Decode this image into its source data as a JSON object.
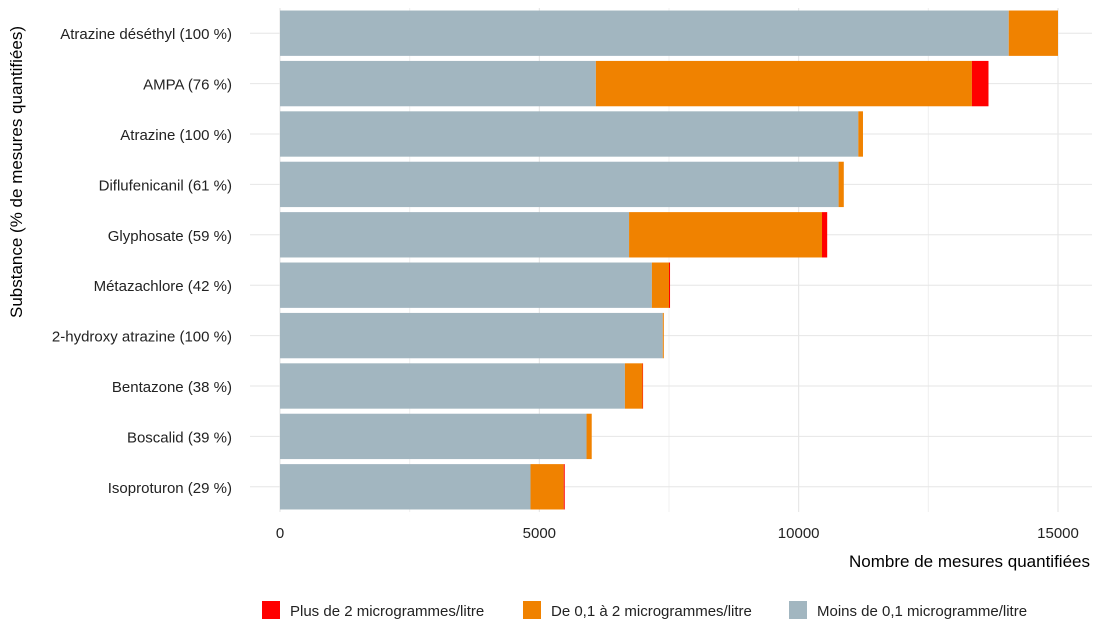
{
  "chart_data": {
    "type": "bar",
    "orientation": "horizontal",
    "stacked": true,
    "ylabel": "Substance (% de mesures quantifiées)",
    "xlabel": "Nombre de mesures quantifiées",
    "xlim": [
      0,
      15500
    ],
    "xticks": [
      0,
      5000,
      10000,
      15000
    ],
    "xtick_labels": [
      "0",
      "5000",
      "10000",
      "15000"
    ],
    "grid": true,
    "legend_position": "bottom",
    "categories": [
      "Atrazine déséthyl (100 %)",
      "AMPA (76 %)",
      "Atrazine (100 %)",
      "Diflufenicanil (61 %)",
      "Glyphosate (59 %)",
      "Métazachlore (42 %)",
      "2-hydroxy atrazine (100 %)",
      "Bentazone (38 %)",
      "Boscalid (39 %)",
      "Isoproturon (29 %)"
    ],
    "series": [
      {
        "name": "Moins de 0,1 microgramme/litre",
        "color": "#a2b6c0",
        "values": [
          14050,
          6090,
          11150,
          10770,
          6730,
          7170,
          7380,
          6650,
          5910,
          4830
        ]
      },
      {
        "name": "De 0,1 à 2 microgrammes/litre",
        "color": "#f08200",
        "values": [
          950,
          7250,
          90,
          100,
          3720,
          330,
          20,
          340,
          100,
          640
        ]
      },
      {
        "name": "Plus de 2 microgrammes/litre",
        "color": "#ff0000",
        "values": [
          0,
          320,
          0,
          0,
          100,
          20,
          0,
          10,
          0,
          20
        ]
      }
    ],
    "legend": [
      {
        "label": "Plus de 2 microgrammes/litre",
        "color": "#ff0000"
      },
      {
        "label": "De 0,1 à 2 microgrammes/litre",
        "color": "#f08200"
      },
      {
        "label": "Moins de 0,1 microgramme/litre",
        "color": "#a2b6c0"
      }
    ]
  }
}
